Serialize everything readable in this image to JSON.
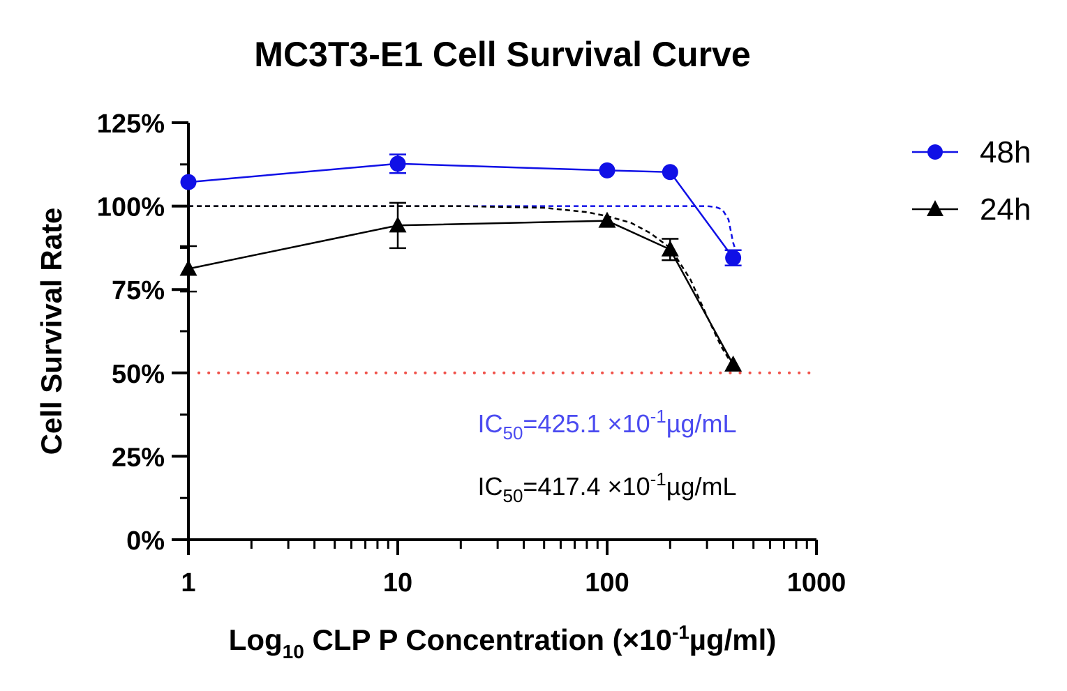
{
  "chart_data": {
    "type": "line",
    "title": "MC3T3-E1 Cell Survival Curve",
    "xlabel": {
      "pre": "Log",
      "sub": "10",
      "mid": " CLP P Concentration (×10",
      "sup": "-1",
      "post": "µg/ml)"
    },
    "ylabel": "Cell Survival Rate",
    "xscale": "log",
    "xlim": [
      1,
      1000
    ],
    "ylim": [
      0,
      125
    ],
    "x_ticks": [
      "1",
      "10",
      "100",
      "1000"
    ],
    "y_ticks": [
      "0%",
      "25%",
      "50%",
      "75%",
      "100%",
      "125%"
    ],
    "series": [
      {
        "name": "48h",
        "color": "#1010e6",
        "marker": "circle",
        "x": [
          1,
          10,
          100,
          200,
          400
        ],
        "y": [
          107.2,
          112.7,
          110.7,
          110.2,
          84.5
        ],
        "err": [
          0,
          2.8,
          0,
          0,
          2.3
        ],
        "fit_curve": [
          [
            1,
            100
          ],
          [
            300,
            100
          ],
          [
            330,
            99.7
          ],
          [
            355,
            99
          ],
          [
            380,
            96
          ],
          [
            400,
            89
          ],
          [
            420,
            85
          ]
        ]
      },
      {
        "name": "24h",
        "color": "#000000",
        "marker": "triangle",
        "x": [
          1,
          10,
          100,
          200,
          400
        ],
        "y": [
          81.2,
          94.2,
          95.6,
          87.0,
          52.5
        ],
        "err": [
          6.8,
          6.8,
          0,
          3.2,
          0
        ],
        "fit_curve": [
          [
            1,
            100
          ],
          [
            20,
            100
          ],
          [
            50,
            99.5
          ],
          [
            80,
            98.2
          ],
          [
            100,
            97
          ],
          [
            130,
            95
          ],
          [
            160,
            92
          ],
          [
            200,
            87.5
          ],
          [
            250,
            78
          ],
          [
            300,
            67
          ],
          [
            350,
            58
          ],
          [
            400,
            52
          ]
        ]
      }
    ],
    "reference_line": {
      "y": 50,
      "color": "#f0524a",
      "style": "dotted"
    },
    "legend": {
      "position": "top-right",
      "items": [
        "48h",
        "24h"
      ]
    },
    "annotations": [
      {
        "pre": "IC",
        "sub": "50",
        "mid": "=425.1 ×10",
        "sup": "-1",
        "post": "µg/mL",
        "color": "#4b4bf0"
      },
      {
        "pre": "IC",
        "sub": "50",
        "mid": "=417.4 ×10",
        "sup": "-1",
        "post": "µg/mL",
        "color": "#000000"
      }
    ],
    "grid": false
  }
}
